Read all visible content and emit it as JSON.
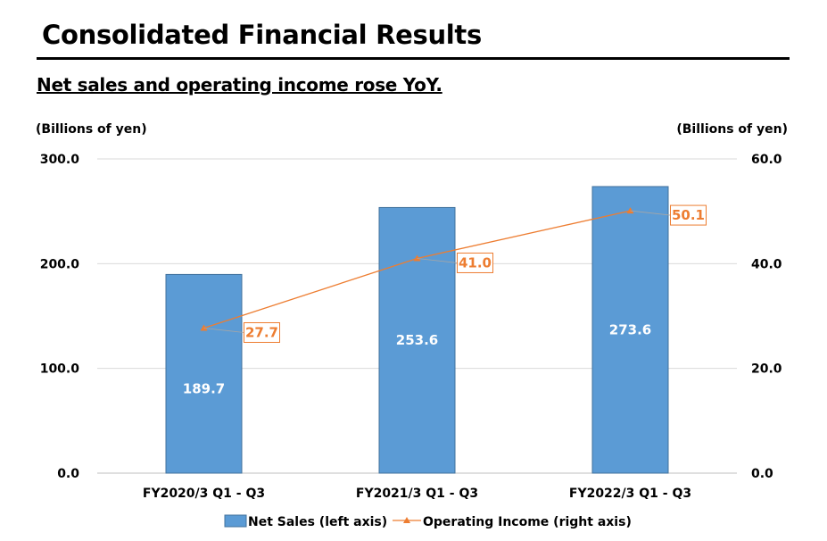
{
  "header": {
    "title": "Consolidated Financial Results",
    "subtitle": "Net sales and operating income rose YoY."
  },
  "chart_data": {
    "type": "bar",
    "categories": [
      "FY2020/3 Q1 - Q3",
      "FY2021/3 Q1 - Q3",
      "FY2022/3 Q1 - Q3"
    ],
    "left_axis": {
      "unit": "(Billions of yen)",
      "ylim": [
        0,
        300
      ],
      "ticks": [
        "0.0",
        "100.0",
        "200.0",
        "300.0"
      ]
    },
    "right_axis": {
      "unit": "(Billions of yen)",
      "ylim": [
        0,
        60
      ],
      "ticks": [
        "0.0",
        "20.0",
        "40.0",
        "60.0"
      ]
    },
    "series": [
      {
        "name": "Net Sales (left axis)",
        "type": "bar",
        "axis": "left",
        "values": [
          189.7,
          253.6,
          273.6
        ],
        "labels": [
          "189.7",
          "253.6",
          "273.6"
        ],
        "color": "#5b9bd5"
      },
      {
        "name": "Operating Income (right axis)",
        "type": "line",
        "axis": "right",
        "values": [
          27.7,
          41.0,
          50.1
        ],
        "labels": [
          "27.7",
          "41.0",
          "50.1"
        ],
        "color": "#ed7d31"
      }
    ],
    "grid": true,
    "legend_position": "bottom"
  }
}
